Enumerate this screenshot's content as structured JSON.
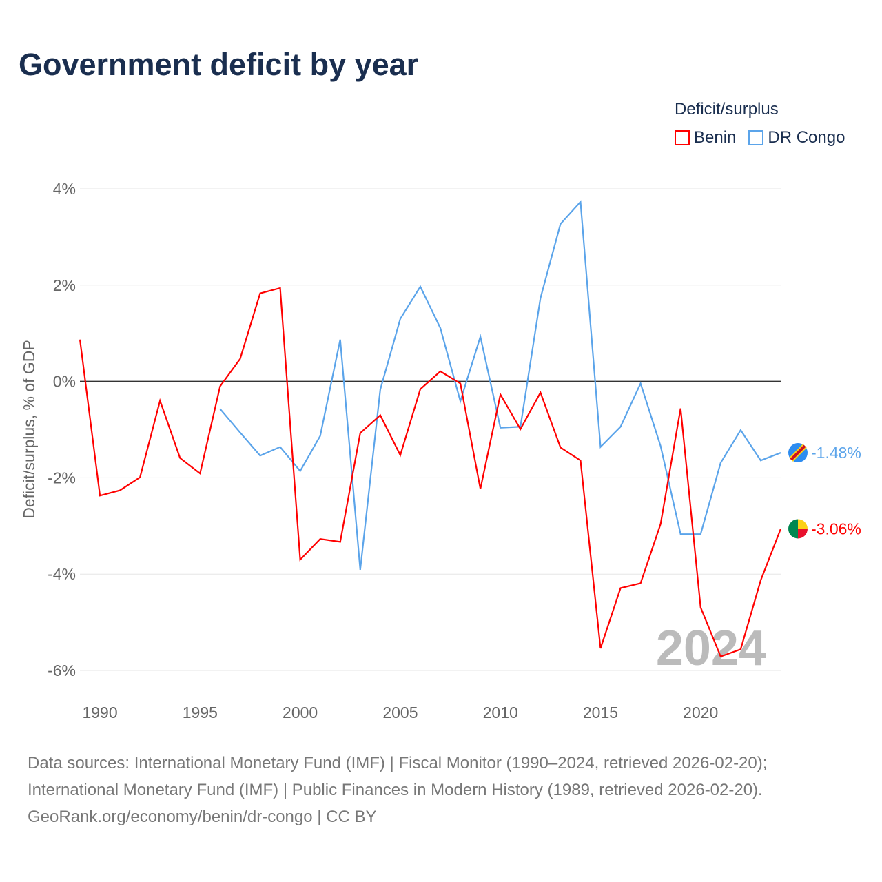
{
  "chart_data": {
    "type": "line",
    "title": "Government deficit by year",
    "ylabel": "Deficit/surplus, % of GDP",
    "xlabel": "",
    "ylim": [
      -6,
      4
    ],
    "xlim": [
      1989,
      2024
    ],
    "yticks": [
      4,
      2,
      0,
      -2,
      -4,
      -6
    ],
    "ytick_labels": [
      "4%",
      "2%",
      "0%",
      "-2%",
      "-4%",
      "-6%"
    ],
    "xticks": [
      1990,
      1995,
      2000,
      2005,
      2010,
      2015,
      2020
    ],
    "xtick_labels": [
      "1990",
      "1995",
      "2000",
      "2005",
      "2010",
      "2015",
      "2020"
    ],
    "legend_title": "Deficit/surplus",
    "legend_placement": "top-right",
    "year_watermark": "2024",
    "series": [
      {
        "name": "Benin",
        "color": "#ff0000",
        "end_label": "-3.06%",
        "start_year": 1989,
        "values": [
          0.87,
          -2.37,
          -2.26,
          -1.99,
          -0.4,
          -1.59,
          -1.91,
          -0.1,
          0.47,
          1.83,
          1.94,
          -3.7,
          -3.27,
          -3.33,
          -1.07,
          -0.7,
          -1.53,
          -0.16,
          0.21,
          -0.04,
          -2.23,
          -0.27,
          -0.99,
          -0.23,
          -1.37,
          -1.64,
          -5.54,
          -4.29,
          -4.19,
          -2.96,
          -0.56,
          -4.69,
          -5.71,
          -5.56,
          -4.13,
          -3.06
        ]
      },
      {
        "name": "DR Congo",
        "color": "#5ba4ea",
        "end_label": "-1.48%",
        "start_year": 1996,
        "values": [
          -0.57,
          -1.06,
          -1.54,
          -1.36,
          -1.86,
          -1.13,
          0.87,
          -3.91,
          -0.17,
          1.3,
          1.97,
          1.11,
          -0.41,
          0.93,
          -0.96,
          -0.94,
          1.73,
          3.27,
          3.73,
          -1.36,
          -0.94,
          -0.04,
          -1.34,
          -3.17,
          -3.17,
          -1.69,
          -1.01,
          -1.64,
          -1.48
        ]
      }
    ]
  },
  "footer": {
    "line1": "Data sources: International Monetary Fund (IMF) | Fiscal Monitor (1990–2024, retrieved 2026-02-20);",
    "line2": "International Monetary Fund (IMF) | Public Finances in Modern History (1989, retrieved 2026-02-20).",
    "line3": "GeoRank.org/economy/benin/dr-congo | CC BY"
  }
}
